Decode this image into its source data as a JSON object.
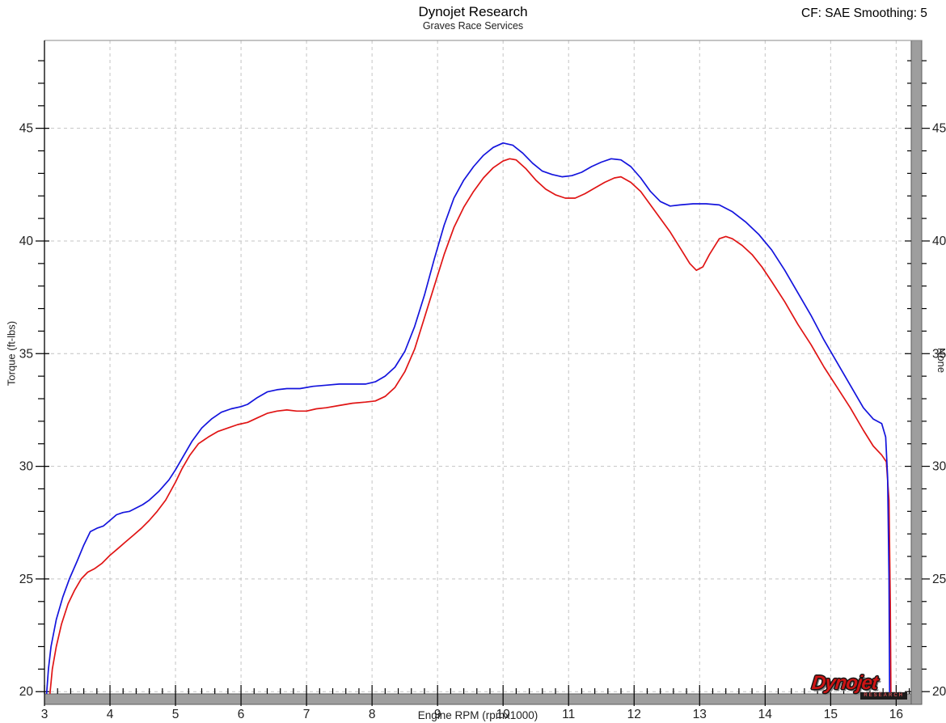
{
  "header": {
    "title": "Dynojet Research",
    "subtitle": "Graves Race Services",
    "correction_label": "CF: SAE Smoothing: 5"
  },
  "logo": {
    "brand": "Dynojet",
    "sub": "RESEARCH"
  },
  "colors": {
    "series_blue": "#1414dd",
    "series_red": "#e01414",
    "grid": "#c4c4c4",
    "axis_bar": "#9e9e9e",
    "tick": "#000000",
    "label": "#222222"
  },
  "chart_data": {
    "type": "line",
    "title": "Dynojet Research",
    "subtitle": "Graves Race Services",
    "annotation_top_right": "CF: SAE Smoothing: 5",
    "xlabel": "Engine RPM (rpmx1000)",
    "ylabel_left": "Torque (ft-lbs)",
    "ylabel_right": "None",
    "grid": "dashed major gridlines both axes",
    "legend": "none",
    "xlim": [
      3,
      16.23
    ],
    "ylim": [
      19.9,
      48.9
    ],
    "x_major_ticks": [
      3,
      4,
      5,
      6,
      7,
      8,
      9,
      10,
      11,
      12,
      13,
      14,
      15,
      16
    ],
    "x_minor_step": 0.2,
    "y_major_ticks": [
      20,
      25,
      30,
      35,
      40,
      45
    ],
    "y_minor_step": 1,
    "series": [
      {
        "name": "torque-run-red",
        "color": "#e01414",
        "points": [
          [
            3.08,
            19.8
          ],
          [
            3.12,
            21.0
          ],
          [
            3.18,
            22.0
          ],
          [
            3.26,
            23.0
          ],
          [
            3.36,
            23.9
          ],
          [
            3.46,
            24.5
          ],
          [
            3.56,
            25.0
          ],
          [
            3.66,
            25.3
          ],
          [
            3.76,
            25.45
          ],
          [
            3.88,
            25.7
          ],
          [
            4.0,
            26.05
          ],
          [
            4.12,
            26.35
          ],
          [
            4.24,
            26.65
          ],
          [
            4.36,
            26.95
          ],
          [
            4.48,
            27.25
          ],
          [
            4.6,
            27.6
          ],
          [
            4.72,
            28.0
          ],
          [
            4.85,
            28.5
          ],
          [
            5.0,
            29.3
          ],
          [
            5.1,
            29.9
          ],
          [
            5.22,
            30.5
          ],
          [
            5.35,
            31.0
          ],
          [
            5.5,
            31.3
          ],
          [
            5.65,
            31.55
          ],
          [
            5.8,
            31.7
          ],
          [
            5.95,
            31.85
          ],
          [
            6.1,
            31.95
          ],
          [
            6.25,
            32.15
          ],
          [
            6.4,
            32.35
          ],
          [
            6.55,
            32.45
          ],
          [
            6.7,
            32.5
          ],
          [
            6.85,
            32.45
          ],
          [
            7.0,
            32.45
          ],
          [
            7.15,
            32.55
          ],
          [
            7.3,
            32.6
          ],
          [
            7.5,
            32.7
          ],
          [
            7.7,
            32.8
          ],
          [
            7.9,
            32.85
          ],
          [
            8.05,
            32.9
          ],
          [
            8.2,
            33.1
          ],
          [
            8.35,
            33.5
          ],
          [
            8.5,
            34.2
          ],
          [
            8.65,
            35.2
          ],
          [
            8.8,
            36.6
          ],
          [
            8.95,
            38.0
          ],
          [
            9.1,
            39.4
          ],
          [
            9.25,
            40.6
          ],
          [
            9.4,
            41.5
          ],
          [
            9.55,
            42.2
          ],
          [
            9.7,
            42.8
          ],
          [
            9.85,
            43.25
          ],
          [
            10.0,
            43.55
          ],
          [
            10.1,
            43.65
          ],
          [
            10.2,
            43.6
          ],
          [
            10.35,
            43.2
          ],
          [
            10.5,
            42.7
          ],
          [
            10.65,
            42.3
          ],
          [
            10.8,
            42.05
          ],
          [
            10.95,
            41.9
          ],
          [
            11.1,
            41.9
          ],
          [
            11.25,
            42.1
          ],
          [
            11.4,
            42.35
          ],
          [
            11.55,
            42.6
          ],
          [
            11.7,
            42.8
          ],
          [
            11.8,
            42.85
          ],
          [
            11.95,
            42.6
          ],
          [
            12.1,
            42.2
          ],
          [
            12.25,
            41.6
          ],
          [
            12.4,
            41.0
          ],
          [
            12.55,
            40.4
          ],
          [
            12.7,
            39.7
          ],
          [
            12.85,
            39.0
          ],
          [
            12.95,
            38.7
          ],
          [
            13.05,
            38.85
          ],
          [
            13.15,
            39.4
          ],
          [
            13.3,
            40.1
          ],
          [
            13.4,
            40.2
          ],
          [
            13.5,
            40.1
          ],
          [
            13.65,
            39.8
          ],
          [
            13.8,
            39.4
          ],
          [
            13.95,
            38.85
          ],
          [
            14.1,
            38.2
          ],
          [
            14.3,
            37.3
          ],
          [
            14.5,
            36.3
          ],
          [
            14.7,
            35.4
          ],
          [
            14.9,
            34.4
          ],
          [
            15.1,
            33.5
          ],
          [
            15.3,
            32.6
          ],
          [
            15.5,
            31.6
          ],
          [
            15.65,
            30.9
          ],
          [
            15.78,
            30.5
          ],
          [
            15.85,
            30.2
          ],
          [
            15.89,
            28.5
          ],
          [
            15.91,
            24.0
          ],
          [
            15.92,
            19.8
          ]
        ]
      },
      {
        "name": "torque-run-blue",
        "color": "#1414dd",
        "points": [
          [
            3.03,
            19.8
          ],
          [
            3.06,
            21.0
          ],
          [
            3.1,
            22.0
          ],
          [
            3.18,
            23.2
          ],
          [
            3.28,
            24.2
          ],
          [
            3.38,
            25.0
          ],
          [
            3.5,
            25.8
          ],
          [
            3.6,
            26.5
          ],
          [
            3.7,
            27.1
          ],
          [
            3.8,
            27.25
          ],
          [
            3.9,
            27.35
          ],
          [
            4.0,
            27.6
          ],
          [
            4.1,
            27.85
          ],
          [
            4.2,
            27.95
          ],
          [
            4.3,
            28.0
          ],
          [
            4.4,
            28.15
          ],
          [
            4.5,
            28.3
          ],
          [
            4.6,
            28.5
          ],
          [
            4.75,
            28.9
          ],
          [
            4.9,
            29.4
          ],
          [
            5.0,
            29.85
          ],
          [
            5.1,
            30.35
          ],
          [
            5.25,
            31.1
          ],
          [
            5.4,
            31.7
          ],
          [
            5.55,
            32.1
          ],
          [
            5.7,
            32.4
          ],
          [
            5.85,
            32.55
          ],
          [
            6.0,
            32.65
          ],
          [
            6.1,
            32.75
          ],
          [
            6.25,
            33.05
          ],
          [
            6.4,
            33.3
          ],
          [
            6.55,
            33.4
          ],
          [
            6.7,
            33.45
          ],
          [
            6.9,
            33.45
          ],
          [
            7.1,
            33.55
          ],
          [
            7.3,
            33.6
          ],
          [
            7.5,
            33.65
          ],
          [
            7.7,
            33.65
          ],
          [
            7.9,
            33.65
          ],
          [
            8.05,
            33.75
          ],
          [
            8.2,
            34.0
          ],
          [
            8.35,
            34.4
          ],
          [
            8.5,
            35.1
          ],
          [
            8.65,
            36.2
          ],
          [
            8.8,
            37.6
          ],
          [
            8.95,
            39.2
          ],
          [
            9.1,
            40.7
          ],
          [
            9.25,
            41.9
          ],
          [
            9.4,
            42.7
          ],
          [
            9.55,
            43.3
          ],
          [
            9.7,
            43.8
          ],
          [
            9.85,
            44.15
          ],
          [
            10.0,
            44.35
          ],
          [
            10.15,
            44.25
          ],
          [
            10.3,
            43.9
          ],
          [
            10.45,
            43.45
          ],
          [
            10.6,
            43.1
          ],
          [
            10.75,
            42.95
          ],
          [
            10.9,
            42.85
          ],
          [
            11.05,
            42.9
          ],
          [
            11.2,
            43.05
          ],
          [
            11.35,
            43.3
          ],
          [
            11.5,
            43.5
          ],
          [
            11.65,
            43.65
          ],
          [
            11.8,
            43.6
          ],
          [
            11.95,
            43.3
          ],
          [
            12.1,
            42.8
          ],
          [
            12.25,
            42.2
          ],
          [
            12.4,
            41.75
          ],
          [
            12.55,
            41.55
          ],
          [
            12.7,
            41.6
          ],
          [
            12.9,
            41.65
          ],
          [
            13.1,
            41.65
          ],
          [
            13.3,
            41.6
          ],
          [
            13.5,
            41.3
          ],
          [
            13.7,
            40.85
          ],
          [
            13.9,
            40.3
          ],
          [
            14.1,
            39.6
          ],
          [
            14.3,
            38.7
          ],
          [
            14.5,
            37.7
          ],
          [
            14.7,
            36.7
          ],
          [
            14.9,
            35.6
          ],
          [
            15.1,
            34.6
          ],
          [
            15.3,
            33.6
          ],
          [
            15.5,
            32.6
          ],
          [
            15.65,
            32.1
          ],
          [
            15.78,
            31.9
          ],
          [
            15.84,
            31.3
          ],
          [
            15.87,
            29.5
          ],
          [
            15.89,
            25.0
          ],
          [
            15.9,
            19.8
          ]
        ]
      }
    ]
  }
}
